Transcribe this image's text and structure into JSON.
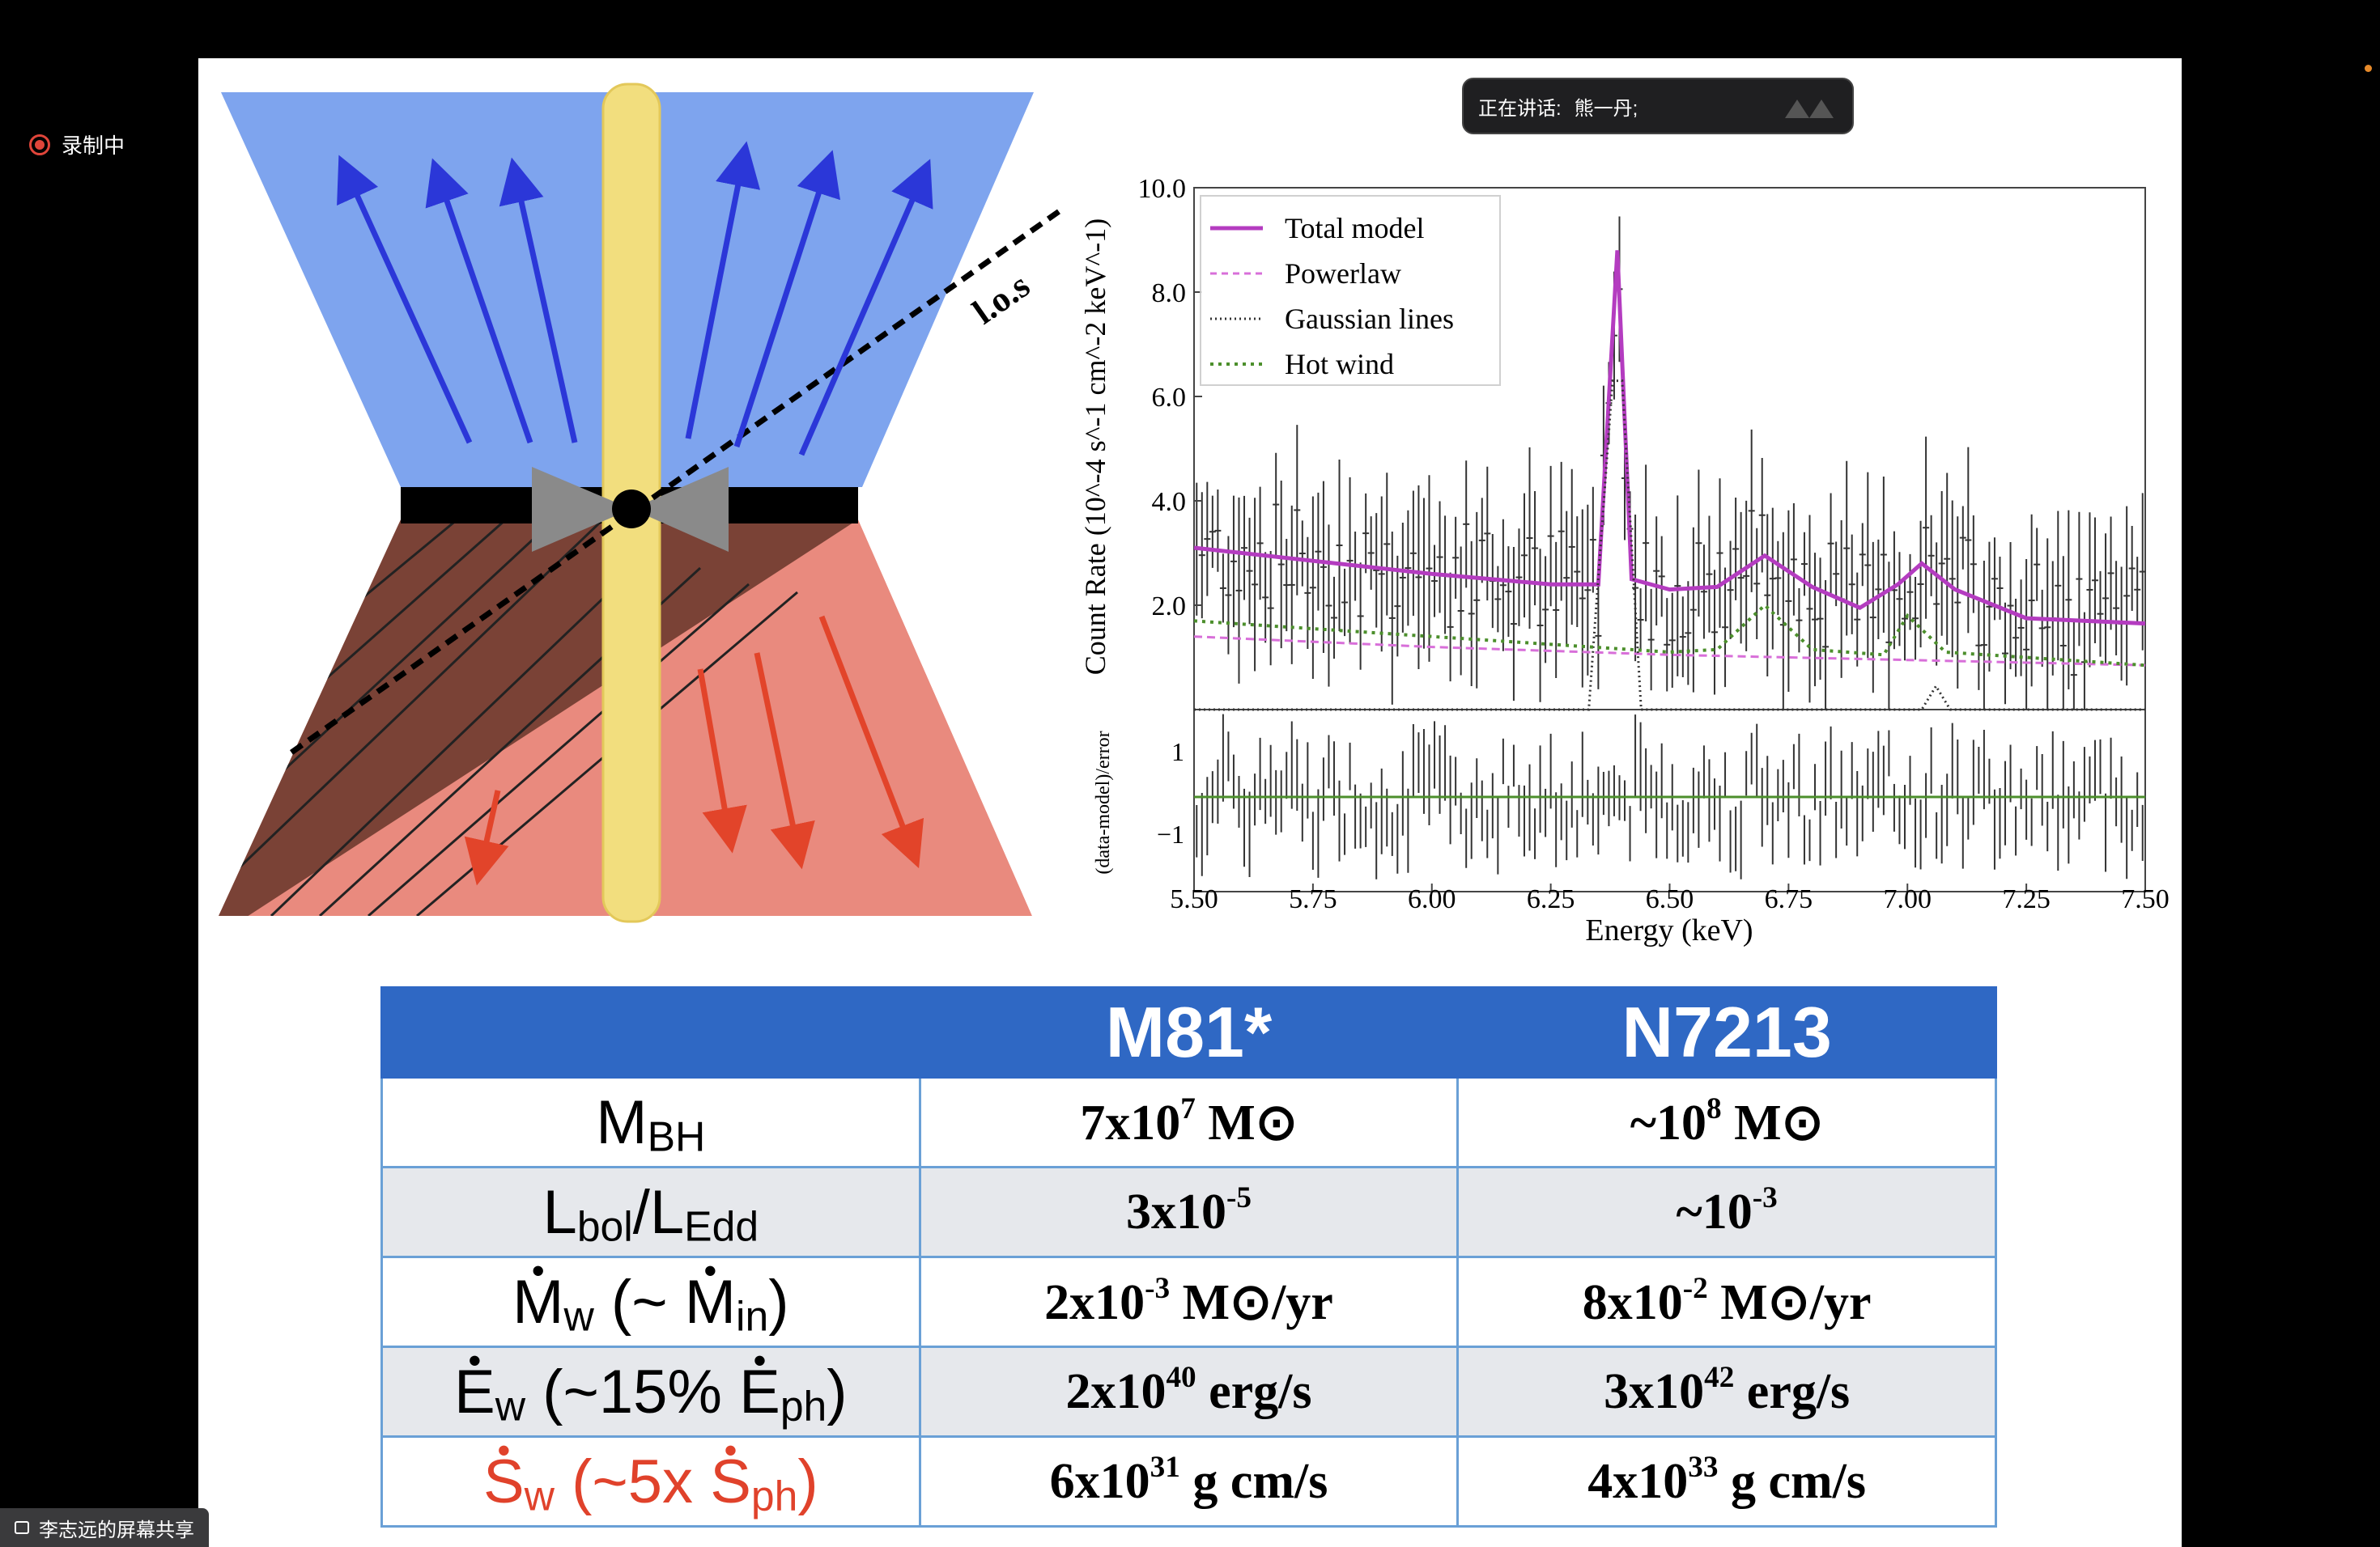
{
  "recording": {
    "label": "录制中"
  },
  "speaker": {
    "label": "正在讲话:",
    "name": "熊一丹;"
  },
  "share": {
    "label": "李志远的屏幕共享"
  },
  "diagram": {
    "los_label": "l.o.s"
  },
  "colors": {
    "blue_cone": "#7ea4ee",
    "red_cone": "#e98a7e",
    "brown": "#7a4236",
    "yellow_jet": "#f2de7e",
    "table_header": "#2f68c4",
    "red_text": "#e0422b"
  },
  "chart_data": {
    "type": "line",
    "title": "",
    "xlabel": "Energy (keV)",
    "ylabel": "Count Rate (10^-4 s^-1 cm^-2 keV^-1)",
    "xlim": [
      5.5,
      7.5
    ],
    "ylim": [
      0,
      10.0
    ],
    "x_ticks": [
      "5.50",
      "5.75",
      "6.00",
      "6.25",
      "6.50",
      "6.75",
      "7.00",
      "7.25",
      "7.50"
    ],
    "y_ticks": [
      "2.0",
      "4.0",
      "6.0",
      "8.0",
      "10.0"
    ],
    "legend": {
      "position": "top-left",
      "entries": [
        "Total model",
        "Powerlaw",
        "Gaussian lines",
        "Hot wind"
      ]
    },
    "series": [
      {
        "name": "Total model",
        "color": "#b43cc0",
        "points": [
          [
            5.5,
            3.1
          ],
          [
            5.75,
            2.85
          ],
          [
            6.0,
            2.6
          ],
          [
            6.25,
            2.4
          ],
          [
            6.35,
            2.4
          ],
          [
            6.39,
            8.8
          ],
          [
            6.42,
            2.5
          ],
          [
            6.5,
            2.3
          ],
          [
            6.6,
            2.35
          ],
          [
            6.7,
            2.95
          ],
          [
            6.8,
            2.35
          ],
          [
            6.9,
            1.95
          ],
          [
            6.98,
            2.4
          ],
          [
            7.03,
            2.8
          ],
          [
            7.1,
            2.3
          ],
          [
            7.25,
            1.75
          ],
          [
            7.5,
            1.65
          ]
        ]
      },
      {
        "name": "Powerlaw",
        "color": "#d86fd9",
        "points": [
          [
            5.5,
            1.4
          ],
          [
            6.0,
            1.2
          ],
          [
            6.5,
            1.05
          ],
          [
            7.0,
            0.95
          ],
          [
            7.5,
            0.85
          ]
        ]
      },
      {
        "name": "Gaussian lines",
        "color": "#333333",
        "points": [
          [
            5.5,
            0
          ],
          [
            6.33,
            0
          ],
          [
            6.38,
            6.3
          ],
          [
            6.4,
            6.3
          ],
          [
            6.44,
            0
          ],
          [
            7.03,
            0
          ],
          [
            7.06,
            0.45
          ],
          [
            7.09,
            0
          ],
          [
            7.5,
            0
          ]
        ]
      },
      {
        "name": "Hot wind",
        "color": "#4c8f2c",
        "points": [
          [
            5.5,
            1.7
          ],
          [
            6.0,
            1.4
          ],
          [
            6.5,
            1.1
          ],
          [
            6.6,
            1.15
          ],
          [
            6.7,
            2.0
          ],
          [
            6.8,
            1.15
          ],
          [
            6.95,
            1.05
          ],
          [
            7.0,
            1.8
          ],
          [
            7.08,
            1.1
          ],
          [
            7.5,
            0.85
          ]
        ]
      }
    ],
    "residuals": {
      "ylabel": "(data-model)/error",
      "y_ticks": [
        "1",
        "−1"
      ]
    }
  },
  "table": {
    "headers": [
      "",
      "M81*",
      "N7213"
    ],
    "rows": [
      {
        "label": {
          "m": "M",
          "sub": "BH"
        },
        "m81": {
          "pre": "7x10",
          "sup": "7",
          "post": " M⊙"
        },
        "n7213": {
          "pre": "~10",
          "sup": "8",
          "post": " M⊙"
        }
      },
      {
        "label": {
          "a": "L",
          "asub": "bol",
          "b": "/L",
          "bsub": "Edd"
        },
        "m81": {
          "pre": "3x10",
          "sup": "-5",
          "post": ""
        },
        "n7213": {
          "pre": "~10",
          "sup": "-3",
          "post": ""
        }
      },
      {
        "label": {
          "a": "M",
          "asub": "w",
          "mid": " (~ ",
          "b": "M",
          "bsub": "in",
          "end": ")"
        },
        "m81": {
          "pre": "2x10",
          "sup": "-3",
          "post": " M⊙/yr"
        },
        "n7213": {
          "pre": "8x10",
          "sup": "-2",
          "post": " M⊙/yr"
        }
      },
      {
        "label": {
          "a": "E",
          "asub": "w",
          "mid": "  (~15% ",
          "b": "E",
          "bsub": "ph",
          "end": ")"
        },
        "m81": {
          "pre": "2x10",
          "sup": "40",
          "post": " erg/s"
        },
        "n7213": {
          "pre": "3x10",
          "sup": "42",
          "post": " erg/s"
        }
      },
      {
        "label": {
          "a": "S",
          "asub": "w",
          "mid": " (~5x ",
          "b": "S",
          "bsub": "ph",
          "end": ")"
        },
        "m81": {
          "pre": "6x10",
          "sup": "31",
          "post": " g cm/s"
        },
        "n7213": {
          "pre": "4x10",
          "sup": "33",
          "post": " g cm/s"
        }
      }
    ]
  }
}
